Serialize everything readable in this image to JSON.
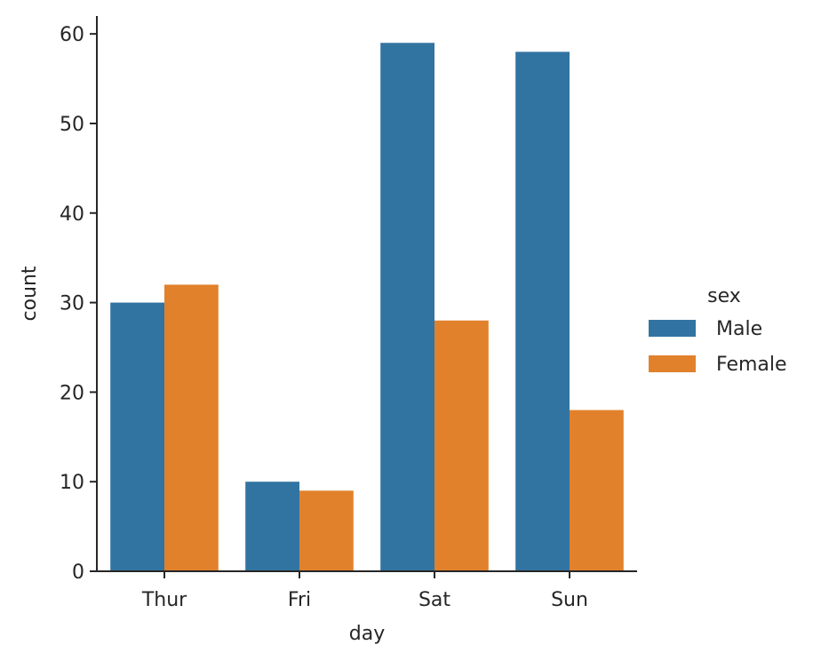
{
  "chart_data": {
    "type": "bar",
    "title": "",
    "xlabel": "day",
    "ylabel": "count",
    "categories": [
      "Thur",
      "Fri",
      "Sat",
      "Sun"
    ],
    "ylim": [
      0,
      62
    ],
    "yticks": [
      0,
      10,
      20,
      30,
      40,
      50,
      60
    ],
    "grid": false,
    "legend": {
      "title": "sex",
      "position": "right"
    },
    "series": [
      {
        "name": "Male",
        "color": "#3274a1",
        "values": [
          30,
          10,
          59,
          58
        ]
      },
      {
        "name": "Female",
        "color": "#e1812c",
        "values": [
          32,
          9,
          28,
          18
        ]
      }
    ]
  }
}
